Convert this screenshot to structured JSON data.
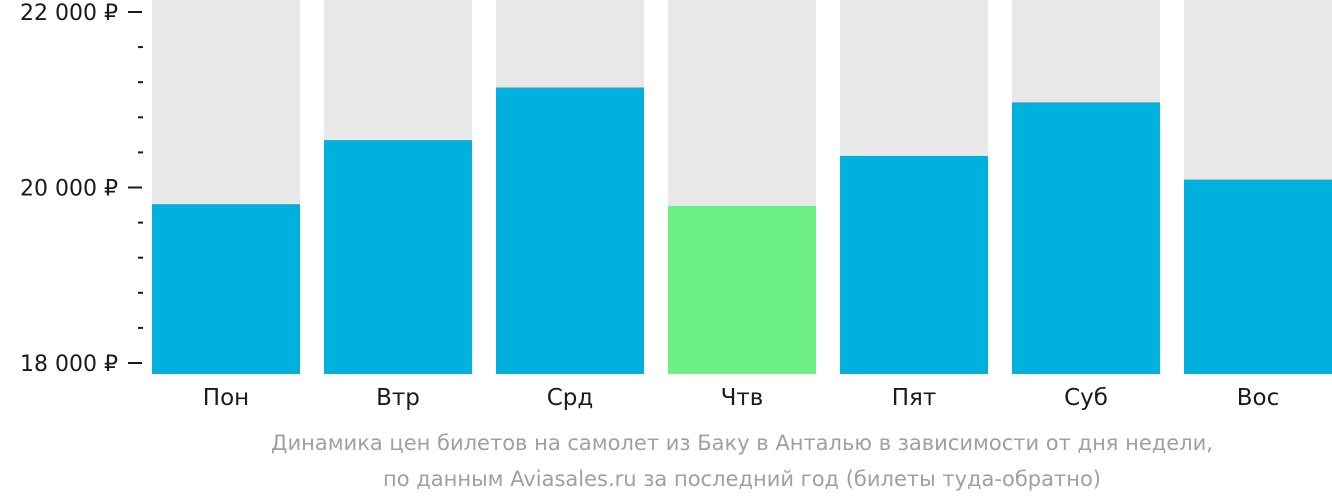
{
  "chart_data": {
    "type": "bar",
    "categories": [
      "Пон",
      "Втр",
      "Срд",
      "Чтв",
      "Пят",
      "Суб",
      "Вос"
    ],
    "values": [
      19810,
      20540,
      21140,
      19790,
      20360,
      20970,
      20090
    ],
    "highlight_index": 3,
    "ylim": [
      18000,
      22000
    ],
    "y_major_ticks": [
      {
        "value": 18000,
        "label": "18 000 ₽"
      },
      {
        "value": 20000,
        "label": "20 000 ₽"
      },
      {
        "value": 22000,
        "label": "22 000 ₽"
      }
    ],
    "y_minor_step": 400,
    "title": "",
    "xlabel": "",
    "ylabel": "",
    "grid": false,
    "colors": {
      "bar": "#00b0dd",
      "highlight": "#6cf086",
      "background_track": "#e8e8e8",
      "axis_text": "#1a1a1a",
      "caption_text": "#a0a0a0"
    }
  },
  "caption": {
    "line1": "Динамика цен билетов на самолет из Баку в Анталью в зависимости от дня недели,",
    "line2": "по данным Aviasales.ru за последний год (билеты туда-обратно)"
  }
}
